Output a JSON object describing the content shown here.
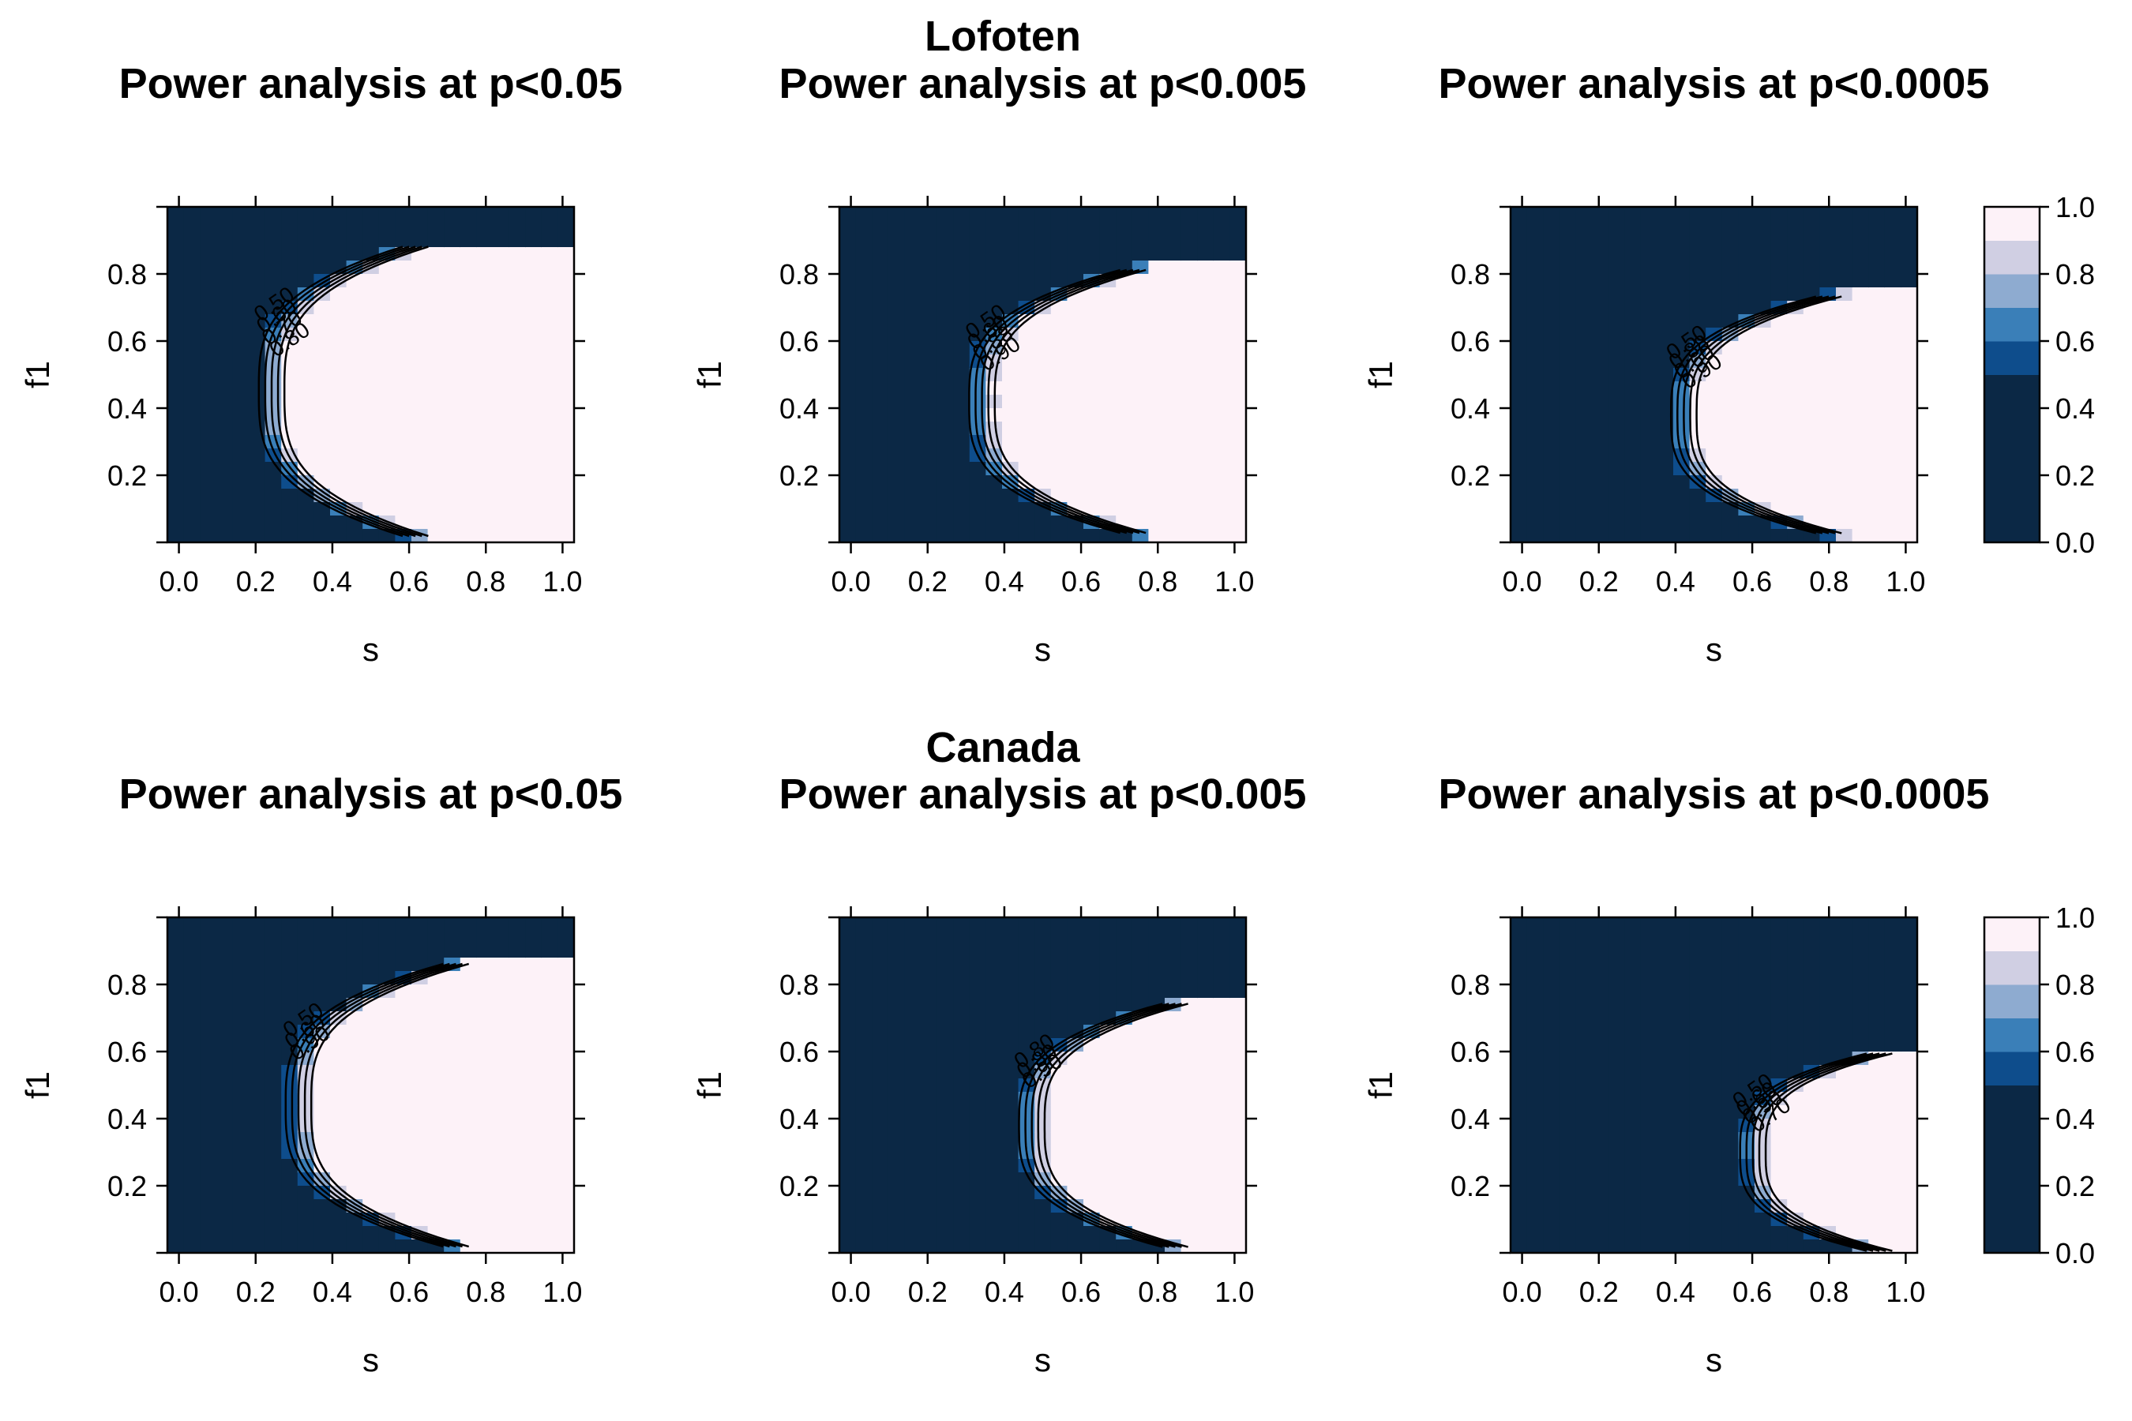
{
  "figure": {
    "groups": [
      {
        "title": "Lofoten"
      },
      {
        "title": "Canada"
      }
    ],
    "colorbar": {
      "ticks": [
        0.0,
        0.2,
        0.4,
        0.6,
        0.8,
        1.0
      ],
      "tick_labels": [
        "0.0",
        "0.2",
        "0.4",
        "0.6",
        "0.8",
        "1.0"
      ],
      "levels": [
        0.0,
        0.5,
        0.6,
        0.7,
        0.8,
        0.9,
        1.0
      ],
      "colors": [
        "#0b2845",
        "#0e4d8c",
        "#3a7fb8",
        "#8eabd0",
        "#d0cfe3",
        "#fdf2f8"
      ]
    },
    "axis_defaults": {
      "xlabel": "s",
      "ylabel": "f1",
      "x_ticks": [
        "0.0",
        "0.2",
        "0.4",
        "0.6",
        "0.8",
        "1.0"
      ],
      "y_ticks": [
        "0.2",
        "0.4",
        "0.6",
        "0.8"
      ]
    }
  },
  "chart_data": [
    {
      "type": "heatmap",
      "group": "Lofoten",
      "title": "Power analysis at p<0.05",
      "xlabel": "s",
      "ylabel": "f1",
      "xlim": [
        0,
        1
      ],
      "ylim": [
        0,
        1
      ],
      "variable": "power",
      "boundary": {
        "s_min": 0.2,
        "f1_center": 0.45,
        "f1_half_width": 0.44,
        "curvature": 0.5
      },
      "contour_labels": [
        "0.50",
        "0.60",
        "0.70",
        "0.80"
      ]
    },
    {
      "type": "heatmap",
      "group": "Lofoten",
      "title": "Power analysis at p<0.005",
      "xlabel": "s",
      "ylabel": "f1",
      "xlim": [
        0,
        1
      ],
      "ylim": [
        0,
        1
      ],
      "variable": "power",
      "boundary": {
        "s_min": 0.3,
        "f1_center": 0.42,
        "f1_half_width": 0.4,
        "curvature": 0.6
      },
      "contour_labels": [
        "0.50",
        "0.60",
        "0.88",
        "0.90"
      ]
    },
    {
      "type": "heatmap",
      "group": "Lofoten",
      "title": "Power analysis at p<0.0005",
      "xlabel": "s",
      "ylabel": "f1",
      "xlim": [
        0,
        1
      ],
      "ylim": [
        0,
        1
      ],
      "variable": "power",
      "boundary": {
        "s_min": 0.38,
        "f1_center": 0.38,
        "f1_half_width": 0.36,
        "curvature": 0.65
      },
      "contour_labels": [
        "0.50",
        "0.88",
        "0.60",
        "0.90"
      ]
    },
    {
      "type": "heatmap",
      "group": "Canada",
      "title": "Power analysis at p<0.05",
      "xlabel": "s",
      "ylabel": "f1",
      "xlim": [
        0,
        1
      ],
      "ylim": [
        0,
        1
      ],
      "variable": "power",
      "boundary": {
        "s_min": 0.27,
        "f1_center": 0.44,
        "f1_half_width": 0.43,
        "curvature": 0.6
      },
      "contour_labels": [
        "0.50",
        "0.60",
        "0.90"
      ]
    },
    {
      "type": "heatmap",
      "group": "Canada",
      "title": "Power analysis at p<0.005",
      "xlabel": "s",
      "ylabel": "f1",
      "xlim": [
        0,
        1
      ],
      "ylim": [
        0,
        1
      ],
      "variable": "power",
      "boundary": {
        "s_min": 0.43,
        "f1_center": 0.38,
        "f1_half_width": 0.37,
        "curvature": 0.7
      },
      "contour_labels": [
        "0.80",
        "0.80",
        "0.90"
      ]
    },
    {
      "type": "heatmap",
      "group": "Canada",
      "title": "Power analysis at p<0.0005",
      "xlabel": "s",
      "ylabel": "f1",
      "xlim": [
        0,
        1
      ],
      "ylim": [
        0,
        1
      ],
      "variable": "power",
      "boundary": {
        "s_min": 0.56,
        "f1_center": 0.3,
        "f1_half_width": 0.3,
        "curvature": 0.8
      },
      "contour_labels": [
        "0.50",
        "0.60",
        "0.90",
        "0.70"
      ]
    }
  ]
}
